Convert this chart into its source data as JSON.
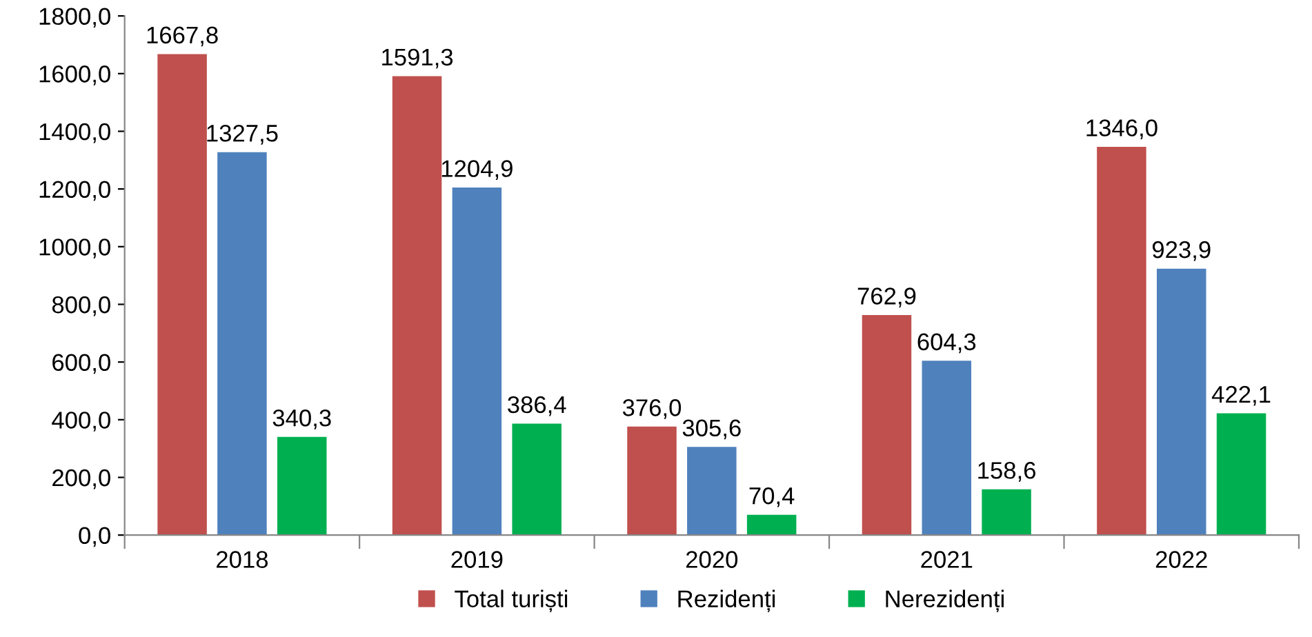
{
  "chart_data": {
    "type": "bar",
    "categories": [
      "2018",
      "2019",
      "2020",
      "2021",
      "2022"
    ],
    "series": [
      {
        "name": "Total turiști",
        "color": "#c0504d",
        "values": [
          1667.8,
          1591.3,
          376.0,
          762.9,
          1346.0
        ],
        "value_labels": [
          "1667,8",
          "1591,3",
          "376,0",
          "762,9",
          "1346,0"
        ]
      },
      {
        "name": "Rezidenți",
        "color": "#4f81bd",
        "values": [
          1327.5,
          1204.9,
          305.6,
          604.3,
          923.9
        ],
        "value_labels": [
          "1327,5",
          "1204,9",
          "305,6",
          "604,3",
          "923,9"
        ]
      },
      {
        "name": "Nerezidenți",
        "color": "#00b050",
        "values": [
          340.3,
          386.4,
          70.4,
          158.6,
          422.1
        ],
        "value_labels": [
          "340,3",
          "386,4",
          "70,4",
          "158,6",
          "422,1"
        ]
      }
    ],
    "ylim": [
      0,
      1800
    ],
    "yticks": [
      {
        "value": 0,
        "label": "0,0"
      },
      {
        "value": 200,
        "label": "200,0"
      },
      {
        "value": 400,
        "label": "400,0"
      },
      {
        "value": 600,
        "label": "600,0"
      },
      {
        "value": 800,
        "label": "800,0"
      },
      {
        "value": 1000,
        "label": "1000,0"
      },
      {
        "value": 1200,
        "label": "1200,0"
      },
      {
        "value": 1400,
        "label": "1400,0"
      },
      {
        "value": 1600,
        "label": "1600,0"
      },
      {
        "value": 1800,
        "label": "1800,0"
      }
    ],
    "legend": "bottom",
    "grid": false
  }
}
